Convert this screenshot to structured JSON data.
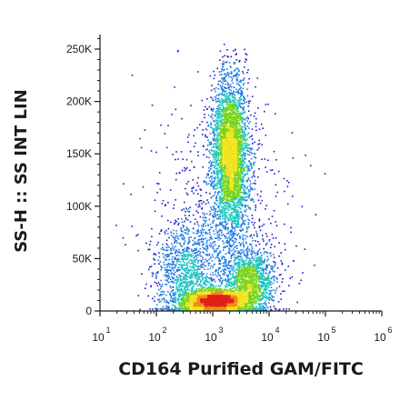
{
  "chart_data": {
    "type": "scatter",
    "style": "flow-cytometry density dot plot",
    "xlabel": "CD164 Purified GAM/FITC",
    "ylabel": "SS-H :: SS INT LIN",
    "x_scale": "log",
    "xlim": [
      10,
      1000000
    ],
    "ylim": [
      0,
      262144
    ],
    "x_ticks": [
      {
        "value": 10,
        "base": "10",
        "exp": "1"
      },
      {
        "value": 100,
        "base": "10",
        "exp": "2"
      },
      {
        "value": 1000,
        "base": "10",
        "exp": "3"
      },
      {
        "value": 10000,
        "base": "10",
        "exp": "4"
      },
      {
        "value": 100000,
        "base": "10",
        "exp": "5"
      },
      {
        "value": 1000000,
        "base": "10",
        "exp": "6"
      }
    ],
    "y_ticks": [
      {
        "value": 0,
        "label": "0"
      },
      {
        "value": 50000,
        "label": "50K"
      },
      {
        "value": 100000,
        "label": "100K"
      },
      {
        "value": 150000,
        "label": "150K"
      },
      {
        "value": 200000,
        "label": "200K"
      },
      {
        "value": 250000,
        "label": "250K"
      }
    ],
    "populations": [
      {
        "name": "tall column",
        "x_log_center": 3.3,
        "x_log_sd": 0.16,
        "y_center": 150000,
        "y_sd": 38000,
        "share": 0.38
      },
      {
        "name": "low dense core",
        "x_log_center": 3.05,
        "x_log_sd": 0.3,
        "y_center": 10000,
        "y_sd": 5500,
        "share": 0.25
      },
      {
        "name": "low right cluster",
        "x_log_center": 3.65,
        "x_log_sd": 0.22,
        "y_center": 30000,
        "y_sd": 15000,
        "share": 0.15
      },
      {
        "name": "left spray",
        "x_log_center": 2.55,
        "x_log_sd": 0.3,
        "y_center": 35000,
        "y_sd": 25000,
        "share": 0.12
      },
      {
        "name": "sparse background",
        "x_log_center": 3.1,
        "x_log_sd": 0.6,
        "y_center": 80000,
        "y_sd": 60000,
        "share": 0.1
      }
    ],
    "density_colors": [
      "#1a1acf",
      "#1f7ae0",
      "#1cc7c0",
      "#7ad41a",
      "#f2e21a",
      "#f28a1a",
      "#e0201a"
    ],
    "grid": false,
    "legend": "none"
  }
}
